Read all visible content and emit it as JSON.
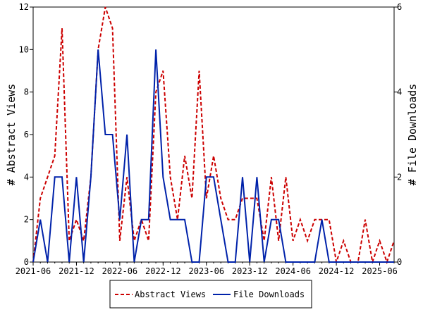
{
  "chart_data": {
    "type": "line",
    "title": "",
    "xlabel": "",
    "ylabel": "# Abstract Views",
    "y2label": "# File Downloads",
    "ylim": [
      0,
      12
    ],
    "y2lim": [
      0,
      6
    ],
    "yticks": [
      0,
      2,
      4,
      6,
      8,
      10,
      12
    ],
    "y2ticks": [
      0,
      2,
      4,
      6
    ],
    "xtick_labels": [
      "2021-06",
      "2021-12",
      "2022-06",
      "2022-12",
      "2023-06",
      "2023-12",
      "2024-06",
      "2024-12",
      "2025-06"
    ],
    "xtick_positions": [
      0,
      6,
      12,
      18,
      24,
      30,
      36,
      42,
      48
    ],
    "x_start": "2021-06",
    "x_end": "2025-08",
    "grid": false,
    "legend_position": "bottom",
    "series": [
      {
        "name": "Abstract Views",
        "axis": "left",
        "style": "dashed",
        "color": "#cc0000",
        "values": [
          0,
          3,
          4,
          5,
          11,
          1,
          2,
          1,
          4,
          10,
          12,
          11,
          1,
          4,
          1,
          2,
          1,
          8,
          9,
          4,
          2,
          5,
          3,
          9,
          3,
          5,
          3,
          2,
          2,
          3,
          3,
          3,
          1,
          4,
          1,
          4,
          1,
          2,
          1,
          2,
          2,
          2,
          0,
          1,
          0,
          0,
          2,
          0,
          1,
          0,
          1
        ]
      },
      {
        "name": "File Downloads",
        "axis": "right",
        "style": "solid",
        "color": "#0022aa",
        "values": [
          0,
          1,
          0,
          2,
          2,
          0,
          2,
          0,
          2,
          5,
          3,
          3,
          1,
          3,
          0,
          1,
          1,
          5,
          2,
          1,
          1,
          1,
          0,
          0,
          2,
          2,
          1,
          0,
          0,
          2,
          0,
          2,
          0,
          1,
          1,
          0,
          0,
          0,
          0,
          0,
          1,
          0,
          0,
          0,
          0,
          0,
          0,
          0,
          0,
          0,
          0
        ]
      }
    ]
  }
}
